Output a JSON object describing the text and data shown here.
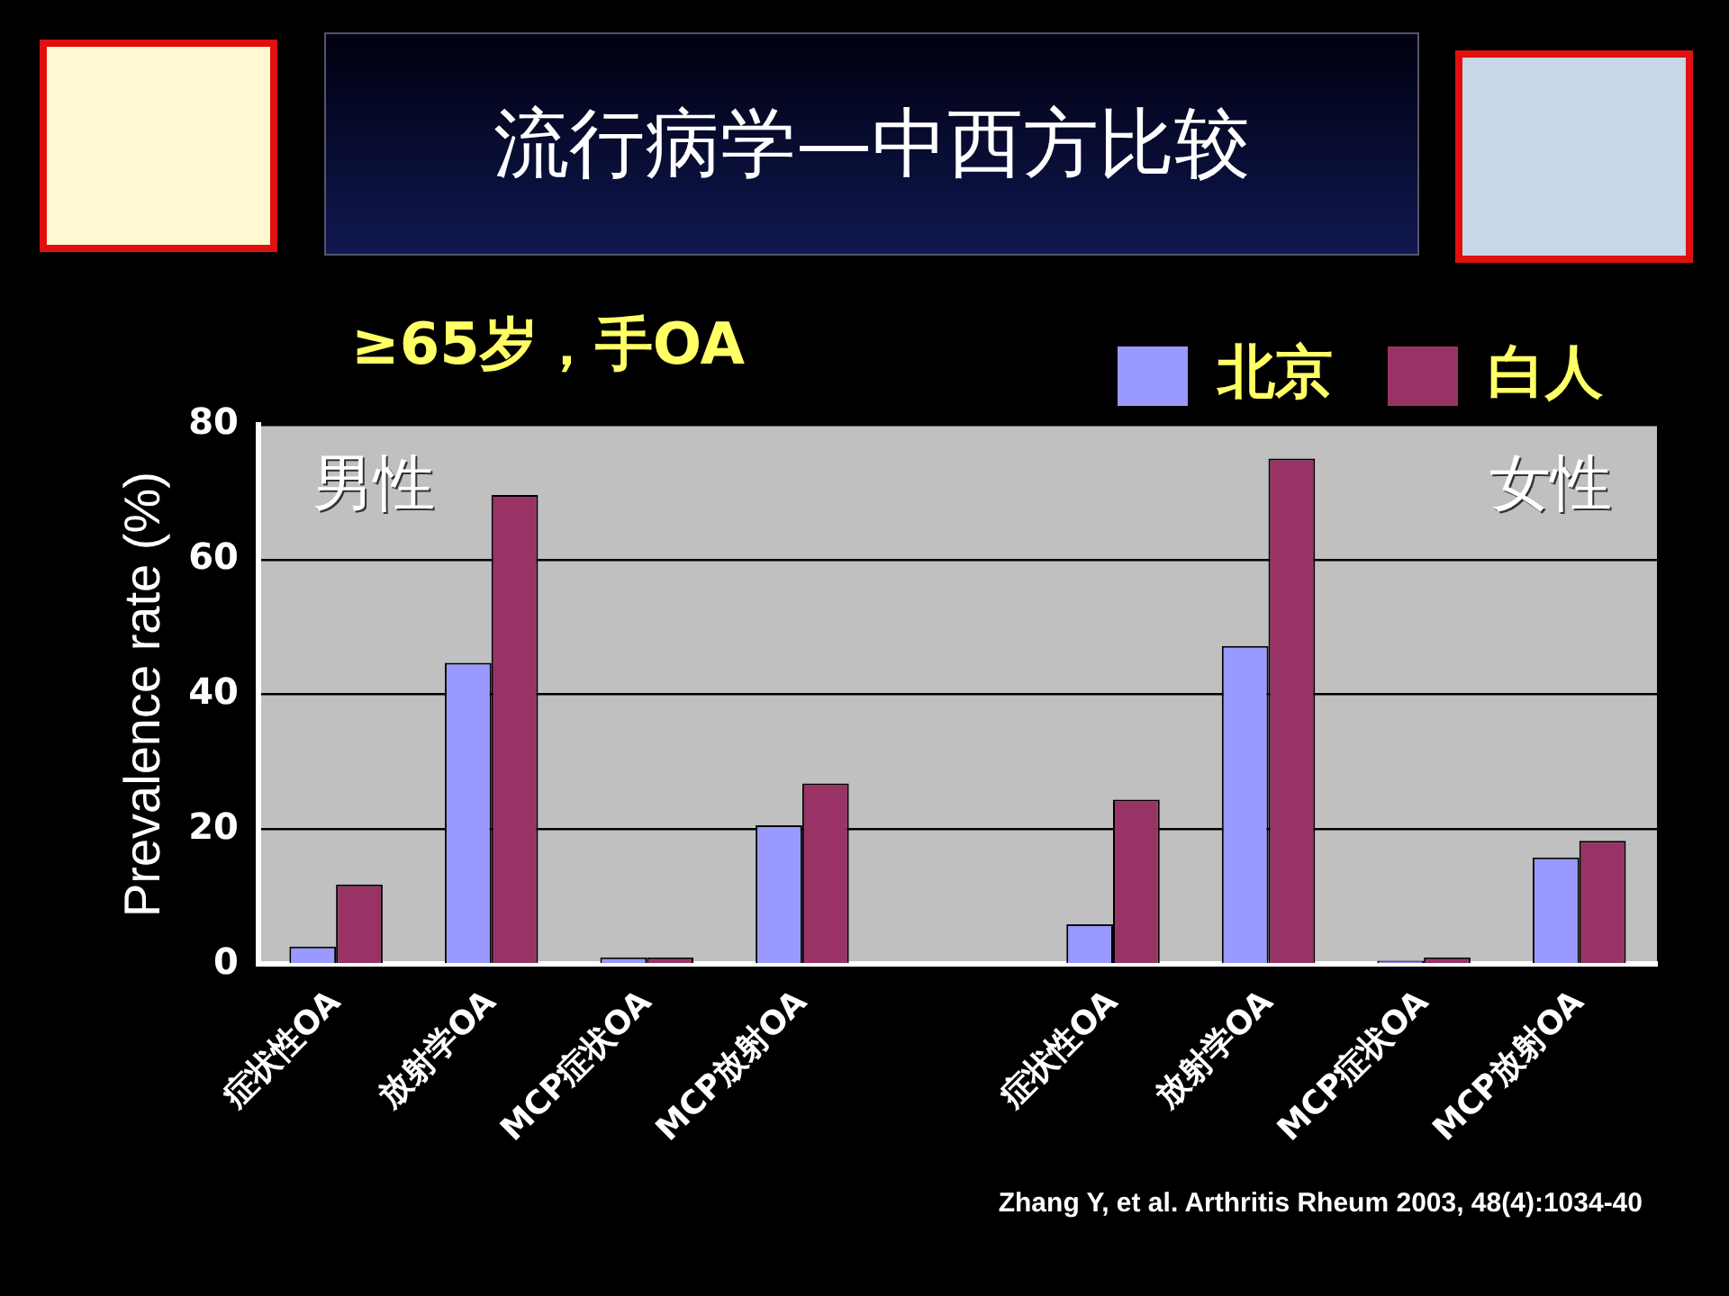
{
  "chart_data": {
    "type": "bar",
    "title": "流行病学—中西方比较",
    "subtitle": "≥65岁，手OA",
    "ylabel": "Prevalence rate (%)",
    "categories": [
      "症状性OA",
      "放射学OA",
      "MCP症状OA",
      "MCP放射OA",
      null,
      "症状性OA",
      "放射学OA",
      "MCP症状OA",
      "MCP放射OA"
    ],
    "series": [
      {
        "name": "北京",
        "color": "#9999ff",
        "values": [
          2.6,
          44.7,
          1,
          20.6,
          null,
          5.9,
          47.2,
          0.5,
          15.8
        ]
      },
      {
        "name": "白人",
        "color": "#993366",
        "values": [
          11.8,
          69.6,
          1,
          26.8,
          null,
          24.4,
          75,
          1,
          18.3
        ]
      }
    ],
    "ylim": [
      0,
      80
    ],
    "yticks": [
      0,
      20,
      40,
      60,
      80
    ],
    "grid": "y",
    "legend": "top right",
    "annotations": [
      "男性",
      "女性",
      "Zhang Y, et al.  Arthritis Rheum 2003, 48(4):1034-40"
    ]
  }
}
